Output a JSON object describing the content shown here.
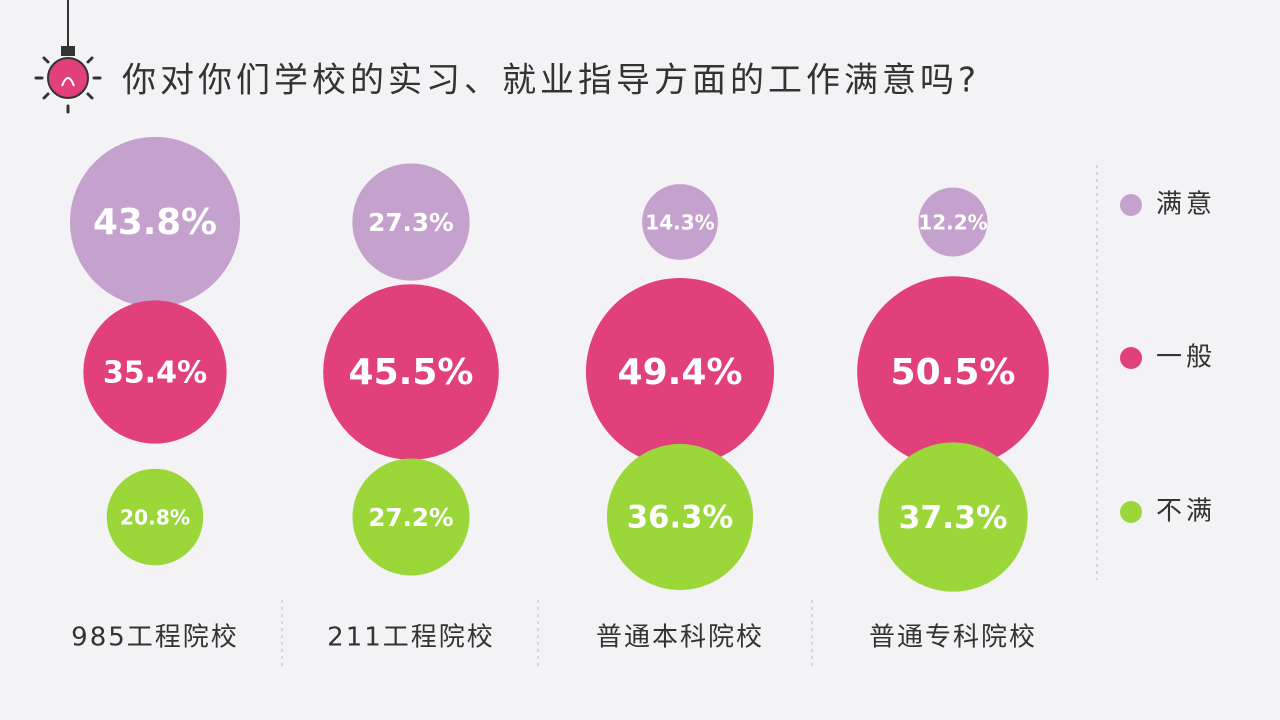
{
  "chart_data": {
    "type": "bubble-grid",
    "title": "你对你们学校的实习、就业指导方面的工作满意吗?",
    "categories": [
      "985工程院校",
      "211工程院校",
      "普通本科院校",
      "普通专科院校"
    ],
    "series": [
      {
        "name": "满意",
        "color": "#c5a2ce",
        "values": [
          43.8,
          27.3,
          14.3,
          12.2
        ],
        "value_labels": [
          "43.8%",
          "27.3%",
          "14.3%",
          "12.2%"
        ]
      },
      {
        "name": "一般",
        "color": "#e2407a",
        "values": [
          35.4,
          45.5,
          49.4,
          50.5
        ],
        "value_labels": [
          "35.4%",
          "45.5%",
          "49.4%",
          "50.5%"
        ]
      },
      {
        "name": "不满",
        "color": "#9bd739",
        "values": [
          20.8,
          27.2,
          36.3,
          37.3
        ],
        "value_labels": [
          "20.8%",
          "27.2%",
          "36.3%",
          "37.3%"
        ]
      }
    ]
  }
}
